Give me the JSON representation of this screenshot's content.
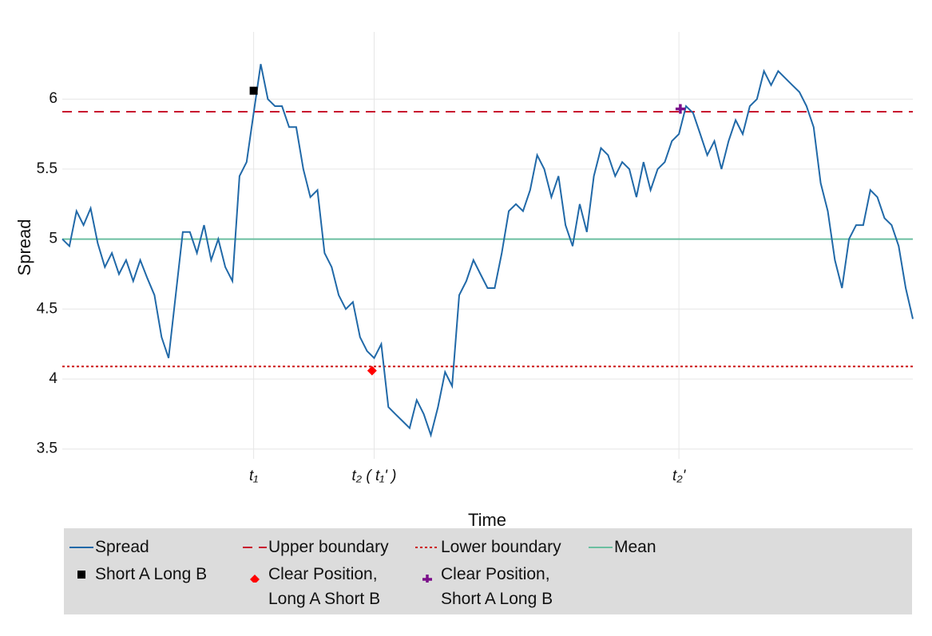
{
  "chart_data": {
    "type": "line",
    "xlabel": "Time",
    "ylabel": "Spread",
    "xlim": [
      0,
      120
    ],
    "ylim": [
      3.43,
      6.48
    ],
    "xticks": [
      {
        "value": 27,
        "label": "t₁"
      },
      {
        "value": 44,
        "label": "t₂ ( t₁' )"
      },
      {
        "value": 87,
        "label": "t₂'"
      }
    ],
    "yticks": [
      3.5,
      4,
      4.5,
      5,
      5.5,
      6
    ],
    "yticks_labels_note": null,
    "grid": true,
    "series": [
      {
        "name": "Spread",
        "color": "#2169a8",
        "x": [
          0,
          1,
          2,
          3,
          4,
          5,
          6,
          7,
          8,
          9,
          10,
          11,
          12,
          13,
          14,
          15,
          16,
          17,
          18,
          19,
          20,
          21,
          22,
          23,
          24,
          25,
          26,
          27,
          28,
          29,
          30,
          31,
          32,
          33,
          34,
          35,
          36,
          37,
          38,
          39,
          40,
          41,
          42,
          43,
          44,
          45,
          46,
          47,
          48,
          49,
          50,
          51,
          52,
          53,
          54,
          55,
          56,
          57,
          58,
          59,
          60,
          61,
          62,
          63,
          64,
          65,
          66,
          67,
          68,
          69,
          70,
          71,
          72,
          73,
          74,
          75,
          76,
          77,
          78,
          79,
          80,
          81,
          82,
          83,
          84,
          85,
          86,
          87,
          88,
          89,
          90,
          91,
          92,
          93,
          94,
          95,
          96,
          97,
          98,
          99,
          100,
          101,
          102,
          103,
          104,
          105,
          106,
          107,
          108,
          109,
          110,
          111,
          112,
          113,
          114,
          115,
          116,
          117,
          118,
          119,
          120
        ],
        "values": [
          5.0,
          4.95,
          5.2,
          5.1,
          5.22,
          4.97,
          4.8,
          4.9,
          4.75,
          4.85,
          4.7,
          4.85,
          4.72,
          4.6,
          4.3,
          4.15,
          4.6,
          5.05,
          5.05,
          4.9,
          5.1,
          4.85,
          5.0,
          4.8,
          4.7,
          5.45,
          5.55,
          5.9,
          6.25,
          6.0,
          5.95,
          5.95,
          5.8,
          5.8,
          5.5,
          5.3,
          5.35,
          4.9,
          4.8,
          4.6,
          4.5,
          4.55,
          4.3,
          4.2,
          4.15,
          4.25,
          3.8,
          3.75,
          3.7,
          3.65,
          3.85,
          3.75,
          3.6,
          3.8,
          4.05,
          3.95,
          4.6,
          4.7,
          4.85,
          4.75,
          4.65,
          4.65,
          4.9,
          5.2,
          5.25,
          5.2,
          5.35,
          5.6,
          5.5,
          5.3,
          5.45,
          5.1,
          4.95,
          5.25,
          5.05,
          5.45,
          5.65,
          5.6,
          5.45,
          5.55,
          5.5,
          5.3,
          5.55,
          5.35,
          5.5,
          5.55,
          5.7,
          5.75,
          5.95,
          5.9,
          5.75,
          5.6,
          5.7,
          5.5,
          5.7,
          5.85,
          5.75,
          5.95,
          6.0,
          6.2,
          6.1,
          6.2,
          6.15,
          6.1,
          6.05,
          5.95,
          5.8,
          5.4,
          5.2,
          4.85,
          4.65,
          5.0,
          5.1,
          5.1,
          5.35,
          5.3,
          5.15,
          5.1,
          4.95,
          4.65,
          4.43
        ]
      }
    ],
    "reference_lines": [
      {
        "name": "Upper boundary",
        "color": "#c8102e",
        "style": "dashed",
        "value": 5.91
      },
      {
        "name": "Lower boundary",
        "color": "#cc1111",
        "style": "dotted",
        "value": 4.09
      },
      {
        "name": "Mean",
        "color": "#6bbfa0",
        "style": "solid",
        "value": 5.0
      }
    ],
    "markers": [
      {
        "name": "Short A Long B",
        "color": "#000000",
        "shape": "square",
        "x": 27,
        "y": 6.06
      },
      {
        "name": "Clear Position, Long A Short B",
        "color": "#ff0000",
        "shape": "diamond",
        "x": 43.7,
        "y": 4.06
      },
      {
        "name": "Clear Position, Short A Long B",
        "color": "#7b0e8a",
        "shape": "cross",
        "x": 87.2,
        "y": 5.93
      }
    ]
  }
}
